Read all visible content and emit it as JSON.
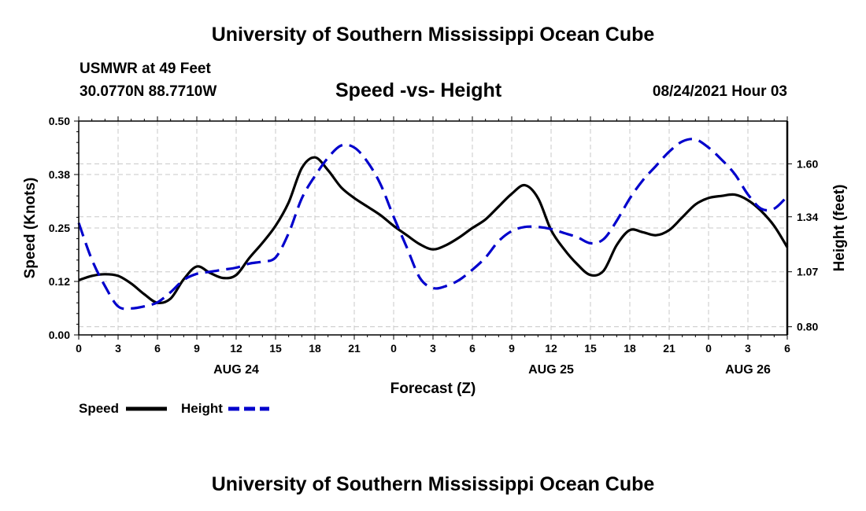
{
  "header": {
    "top_title": "University of Southern Mississippi Ocean Cube",
    "station": "USMWR at 49 Feet",
    "coords": "30.0770N  88.7710W",
    "datetime": "08/24/2021 Hour 03",
    "bottom_title": "University of Southern Mississippi Ocean Cube"
  },
  "colors": {
    "speed": "#000000",
    "height": "#0000cc",
    "grid": "#c8c8c8"
  },
  "chart_data": {
    "type": "line",
    "title": "Speed -vs- Height",
    "xlabel": "Forecast (Z)",
    "ylabel": "Speed (Knots)",
    "y2label": "Height (feet)",
    "xlim": [
      0,
      54
    ],
    "ylim": [
      0,
      0.5
    ],
    "y2lim": [
      0.76,
      1.81
    ],
    "x_ticks": [
      0,
      3,
      6,
      9,
      12,
      15,
      18,
      21,
      24,
      27,
      30,
      33,
      36,
      39,
      42,
      45,
      48,
      51,
      54
    ],
    "x_tick_labels": [
      "0",
      "3",
      "6",
      "9",
      "12",
      "15",
      "18",
      "21",
      "0",
      "3",
      "6",
      "9",
      "12",
      "15",
      "18",
      "21",
      "0",
      "3",
      "6"
    ],
    "y_ticks": [
      0,
      0.125,
      0.25,
      0.375,
      0.5
    ],
    "y_tick_labels": [
      "0.00",
      "0.12",
      "0.25",
      "0.38",
      "0.50"
    ],
    "y2_ticks": [
      0.8,
      1.07,
      1.34,
      1.6
    ],
    "y2_tick_labels": [
      "0.80",
      "1.07",
      "1.34",
      "1.60"
    ],
    "day_labels": [
      {
        "x": 12,
        "label": "AUG 24"
      },
      {
        "x": 36,
        "label": "AUG 25"
      },
      {
        "x": 51,
        "label": "AUG 26"
      }
    ],
    "grid": true,
    "legend_position": "bottom-left",
    "series": [
      {
        "name": "Speed",
        "axis": "left",
        "style": "solid",
        "x": [
          0,
          1,
          2,
          3,
          4,
          5,
          6,
          7,
          8,
          9,
          10,
          11,
          12,
          13,
          14,
          15,
          16,
          17,
          18,
          19,
          20,
          21,
          22,
          23,
          24,
          25,
          26,
          27,
          28,
          29,
          30,
          31,
          32,
          33,
          34,
          35,
          36,
          37,
          38,
          39,
          40,
          41,
          42,
          43,
          44,
          45,
          46,
          47,
          48,
          49,
          50,
          51,
          52,
          53,
          54
        ],
        "values": [
          0.128,
          0.138,
          0.142,
          0.138,
          0.12,
          0.095,
          0.075,
          0.085,
          0.13,
          0.16,
          0.145,
          0.133,
          0.14,
          0.18,
          0.215,
          0.255,
          0.31,
          0.39,
          0.415,
          0.385,
          0.345,
          0.32,
          0.3,
          0.28,
          0.255,
          0.233,
          0.212,
          0.2,
          0.21,
          0.228,
          0.25,
          0.27,
          0.3,
          0.33,
          0.35,
          0.32,
          0.245,
          0.2,
          0.165,
          0.14,
          0.15,
          0.21,
          0.245,
          0.24,
          0.233,
          0.245,
          0.275,
          0.305,
          0.32,
          0.325,
          0.328,
          0.315,
          0.29,
          0.255,
          0.205
        ]
      },
      {
        "name": "Height",
        "axis": "right",
        "style": "dashed",
        "x": [
          0,
          1,
          2,
          3,
          4,
          5,
          6,
          7,
          8,
          9,
          10,
          11,
          12,
          13,
          14,
          15,
          16,
          17,
          18,
          19,
          20,
          21,
          22,
          23,
          24,
          25,
          26,
          27,
          28,
          29,
          30,
          31,
          32,
          33,
          34,
          35,
          36,
          37,
          38,
          39,
          40,
          41,
          42,
          43,
          44,
          45,
          46,
          47,
          48,
          49,
          50,
          51,
          52,
          53,
          54
        ],
        "values": [
          1.31,
          1.13,
          1.0,
          0.9,
          0.89,
          0.9,
          0.92,
          0.97,
          1.03,
          1.06,
          1.07,
          1.08,
          1.09,
          1.11,
          1.12,
          1.14,
          1.26,
          1.43,
          1.54,
          1.63,
          1.69,
          1.68,
          1.61,
          1.5,
          1.34,
          1.19,
          1.04,
          0.99,
          1.0,
          1.03,
          1.08,
          1.14,
          1.22,
          1.27,
          1.29,
          1.29,
          1.28,
          1.26,
          1.24,
          1.21,
          1.23,
          1.32,
          1.43,
          1.52,
          1.59,
          1.66,
          1.71,
          1.72,
          1.68,
          1.62,
          1.55,
          1.45,
          1.38,
          1.38,
          1.44
        ]
      }
    ]
  }
}
